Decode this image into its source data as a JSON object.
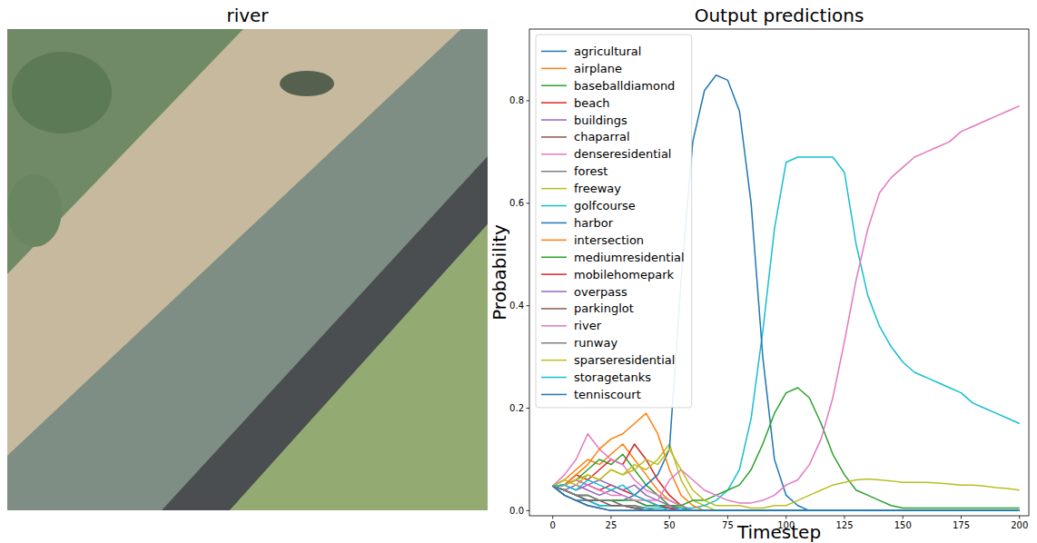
{
  "image_panel": {
    "title": "river"
  },
  "chart_data": {
    "type": "line",
    "title": "Output predictions",
    "x_label": "Timestep",
    "y_label": "Probability",
    "legend": "upper left",
    "grid": false,
    "xlim": [
      -10,
      204
    ],
    "ylim": [
      -0.01,
      0.94
    ],
    "xticks": [
      0,
      25,
      50,
      75,
      100,
      125,
      150,
      175,
      200
    ],
    "yticks": [
      {
        "value": 0,
        "label": "0.0"
      },
      0.2,
      0.4,
      0.6,
      0.8
    ],
    "x": [
      0,
      5,
      10,
      15,
      20,
      25,
      30,
      35,
      40,
      45,
      50,
      55,
      60,
      65,
      70,
      75,
      80,
      85,
      90,
      95,
      100,
      105,
      110,
      115,
      120,
      125,
      130,
      135,
      140,
      145,
      150,
      155,
      160,
      165,
      170,
      175,
      180,
      185,
      190,
      195,
      200
    ],
    "series": [
      {
        "name": "agricultural",
        "color": "#1f77b4",
        "values": [
          0.048,
          0.03,
          0.02,
          0.02,
          0.01,
          0.01,
          0.01,
          0.005,
          0,
          0,
          0,
          0,
          0,
          0,
          0,
          0,
          0,
          0,
          0,
          0,
          0,
          0,
          0,
          0,
          0,
          0,
          0,
          0,
          0,
          0,
          0,
          0,
          0,
          0,
          0,
          0,
          0,
          0,
          0,
          0,
          0
        ]
      },
      {
        "name": "airplane",
        "color": "#ff7f0e",
        "values": [
          0.048,
          0.06,
          0.08,
          0.1,
          0.09,
          0.11,
          0.13,
          0.1,
          0.07,
          0.04,
          0.02,
          0.01,
          0,
          0,
          0,
          0,
          0,
          0,
          0,
          0,
          0,
          0,
          0,
          0,
          0,
          0,
          0,
          0,
          0,
          0,
          0,
          0,
          0,
          0,
          0,
          0,
          0,
          0,
          0,
          0,
          0
        ]
      },
      {
        "name": "baseballdiamond",
        "color": "#2ca02c",
        "values": [
          0.048,
          0.05,
          0.06,
          0.08,
          0.1,
          0.09,
          0.11,
          0.08,
          0.05,
          0.03,
          0.01,
          0.005,
          0,
          0,
          0,
          0,
          0,
          0,
          0,
          0,
          0,
          0,
          0,
          0,
          0,
          0,
          0,
          0,
          0,
          0,
          0,
          0,
          0,
          0,
          0,
          0,
          0,
          0,
          0,
          0,
          0
        ]
      },
      {
        "name": "beach",
        "color": "#d62728",
        "values": [
          0.048,
          0.05,
          0.07,
          0.06,
          0.08,
          0.1,
          0.09,
          0.13,
          0.1,
          0.06,
          0.03,
          0.01,
          0,
          0,
          0,
          0,
          0,
          0,
          0,
          0,
          0,
          0,
          0,
          0,
          0,
          0,
          0,
          0,
          0,
          0,
          0,
          0,
          0,
          0,
          0,
          0,
          0,
          0,
          0,
          0,
          0
        ]
      },
      {
        "name": "buildings",
        "color": "#9467bd",
        "values": [
          0.048,
          0.04,
          0.05,
          0.04,
          0.03,
          0.04,
          0.03,
          0.02,
          0.01,
          0.01,
          0.005,
          0,
          0,
          0,
          0,
          0,
          0,
          0,
          0,
          0,
          0,
          0,
          0,
          0,
          0,
          0,
          0,
          0,
          0,
          0,
          0,
          0,
          0,
          0,
          0,
          0,
          0,
          0,
          0,
          0,
          0
        ]
      },
      {
        "name": "chaparral",
        "color": "#8c564b",
        "values": [
          0.048,
          0.03,
          0.02,
          0.01,
          0.005,
          0,
          0,
          0,
          0,
          0,
          0,
          0,
          0,
          0,
          0,
          0,
          0,
          0,
          0,
          0,
          0,
          0,
          0,
          0,
          0,
          0,
          0,
          0,
          0,
          0,
          0,
          0,
          0,
          0,
          0,
          0,
          0,
          0,
          0,
          0,
          0
        ]
      },
      {
        "name": "denseresidential",
        "color": "#e377c2",
        "values": [
          0.048,
          0.07,
          0.1,
          0.15,
          0.12,
          0.1,
          0.09,
          0.06,
          0.04,
          0.03,
          0.02,
          0.01,
          0,
          0,
          0,
          0,
          0,
          0,
          0,
          0,
          0,
          0,
          0,
          0,
          0,
          0,
          0,
          0,
          0,
          0,
          0,
          0,
          0,
          0,
          0,
          0,
          0,
          0,
          0,
          0,
          0
        ]
      },
      {
        "name": "forest",
        "color": "#7f7f7f",
        "values": [
          0.048,
          0.04,
          0.03,
          0.03,
          0.02,
          0.02,
          0.01,
          0.01,
          0.005,
          0,
          0,
          0,
          0,
          0,
          0,
          0,
          0,
          0,
          0,
          0,
          0,
          0,
          0,
          0,
          0,
          0,
          0,
          0,
          0,
          0,
          0,
          0,
          0,
          0,
          0,
          0,
          0,
          0,
          0,
          0,
          0
        ]
      },
      {
        "name": "freeway",
        "color": "#bcbd22",
        "values": [
          0.048,
          0.06,
          0.05,
          0.07,
          0.06,
          0.08,
          0.07,
          0.09,
          0.08,
          0.1,
          0.13,
          0.06,
          0.02,
          0.01,
          0,
          0,
          0,
          0,
          0,
          0,
          0,
          0,
          0,
          0,
          0,
          0,
          0,
          0,
          0,
          0,
          0,
          0,
          0,
          0,
          0,
          0,
          0,
          0,
          0,
          0,
          0
        ]
      },
      {
        "name": "golfcourse",
        "color": "#17becf",
        "values": [
          0.048,
          0.04,
          0.03,
          0.02,
          0.01,
          0.01,
          0.01,
          0.005,
          0.005,
          0.005,
          0.005,
          0.005,
          0.005,
          0.01,
          0.02,
          0.04,
          0.08,
          0.18,
          0.35,
          0.55,
          0.68,
          0.69,
          0.69,
          0.69,
          0.69,
          0.66,
          0.52,
          0.42,
          0.36,
          0.32,
          0.29,
          0.27,
          0.26,
          0.25,
          0.24,
          0.23,
          0.21,
          0.2,
          0.19,
          0.18,
          0.17
        ]
      },
      {
        "name": "harbor",
        "color": "#1f77b4",
        "values": [
          0.048,
          0.04,
          0.03,
          0.02,
          0.02,
          0.02,
          0.02,
          0.03,
          0.05,
          0.07,
          0.12,
          0.45,
          0.72,
          0.82,
          0.85,
          0.84,
          0.78,
          0.6,
          0.3,
          0.1,
          0.03,
          0.01,
          0,
          0,
          0,
          0,
          0,
          0,
          0,
          0,
          0,
          0,
          0,
          0,
          0,
          0,
          0,
          0,
          0,
          0,
          0
        ]
      },
      {
        "name": "intersection",
        "color": "#ff7f0e",
        "values": [
          0.048,
          0.05,
          0.07,
          0.09,
          0.12,
          0.14,
          0.15,
          0.17,
          0.19,
          0.15,
          0.08,
          0.03,
          0.01,
          0,
          0,
          0,
          0,
          0,
          0,
          0,
          0,
          0,
          0,
          0,
          0,
          0,
          0,
          0,
          0,
          0,
          0,
          0,
          0,
          0,
          0,
          0,
          0,
          0,
          0,
          0,
          0
        ]
      },
      {
        "name": "mediumresidential",
        "color": "#2ca02c",
        "values": [
          0.048,
          0.04,
          0.03,
          0.03,
          0.02,
          0.02,
          0.02,
          0.02,
          0.01,
          0.01,
          0.01,
          0.01,
          0.02,
          0.02,
          0.03,
          0.04,
          0.05,
          0.08,
          0.13,
          0.19,
          0.23,
          0.24,
          0.22,
          0.17,
          0.11,
          0.07,
          0.04,
          0.03,
          0.02,
          0.01,
          0.005,
          0.005,
          0.005,
          0.005,
          0.005,
          0.005,
          0.005,
          0.005,
          0.005,
          0.005,
          0.005
        ]
      },
      {
        "name": "mobilehomepark",
        "color": "#d62728",
        "values": [
          0.048,
          0.05,
          0.06,
          0.05,
          0.04,
          0.05,
          0.04,
          0.03,
          0.02,
          0.01,
          0.005,
          0,
          0,
          0,
          0,
          0,
          0,
          0,
          0,
          0,
          0,
          0,
          0,
          0,
          0,
          0,
          0,
          0,
          0,
          0,
          0,
          0,
          0,
          0,
          0,
          0,
          0,
          0,
          0,
          0,
          0
        ]
      },
      {
        "name": "overpass",
        "color": "#9467bd",
        "values": [
          0.048,
          0.05,
          0.04,
          0.05,
          0.06,
          0.05,
          0.04,
          0.05,
          0.03,
          0.02,
          0.01,
          0,
          0,
          0,
          0,
          0,
          0,
          0,
          0,
          0,
          0,
          0,
          0,
          0,
          0,
          0,
          0,
          0,
          0,
          0,
          0,
          0,
          0,
          0,
          0,
          0,
          0,
          0,
          0,
          0,
          0
        ]
      },
      {
        "name": "parkinglot",
        "color": "#8c564b",
        "values": [
          0.048,
          0.04,
          0.03,
          0.02,
          0.02,
          0.01,
          0.01,
          0.005,
          0,
          0,
          0,
          0,
          0,
          0,
          0,
          0,
          0,
          0,
          0,
          0,
          0,
          0,
          0,
          0,
          0,
          0,
          0,
          0,
          0,
          0,
          0,
          0,
          0,
          0,
          0,
          0,
          0,
          0,
          0,
          0,
          0
        ]
      },
      {
        "name": "river",
        "color": "#e377c2",
        "values": [
          0.048,
          0.05,
          0.06,
          0.05,
          0.04,
          0.03,
          0.03,
          0.02,
          0.02,
          0.02,
          0.06,
          0.08,
          0.06,
          0.04,
          0.03,
          0.02,
          0.015,
          0.015,
          0.02,
          0.03,
          0.05,
          0.06,
          0.09,
          0.14,
          0.22,
          0.33,
          0.45,
          0.55,
          0.62,
          0.65,
          0.67,
          0.69,
          0.7,
          0.71,
          0.72,
          0.74,
          0.75,
          0.76,
          0.77,
          0.78,
          0.79
        ]
      },
      {
        "name": "runway",
        "color": "#7f7f7f",
        "values": [
          0.048,
          0.04,
          0.03,
          0.03,
          0.02,
          0.02,
          0.01,
          0.01,
          0,
          0,
          0,
          0,
          0,
          0,
          0,
          0,
          0,
          0,
          0,
          0,
          0,
          0,
          0,
          0,
          0,
          0,
          0,
          0,
          0,
          0,
          0,
          0,
          0,
          0,
          0,
          0,
          0,
          0,
          0,
          0,
          0
        ]
      },
      {
        "name": "sparseresidential",
        "color": "#bcbd22",
        "values": [
          0.048,
          0.05,
          0.06,
          0.07,
          0.06,
          0.08,
          0.07,
          0.08,
          0.1,
          0.09,
          0.12,
          0.08,
          0.04,
          0.02,
          0.01,
          0.01,
          0.01,
          0.005,
          0.005,
          0.01,
          0.01,
          0.02,
          0.03,
          0.04,
          0.05,
          0.055,
          0.06,
          0.062,
          0.06,
          0.058,
          0.055,
          0.055,
          0.055,
          0.054,
          0.052,
          0.05,
          0.05,
          0.048,
          0.045,
          0.043,
          0.04
        ]
      },
      {
        "name": "storagetanks",
        "color": "#17becf",
        "values": [
          0.048,
          0.05,
          0.04,
          0.06,
          0.05,
          0.04,
          0.05,
          0.03,
          0.02,
          0.01,
          0,
          0,
          0,
          0,
          0,
          0,
          0,
          0,
          0,
          0,
          0,
          0,
          0,
          0,
          0,
          0,
          0,
          0,
          0,
          0,
          0,
          0,
          0,
          0,
          0,
          0,
          0,
          0,
          0,
          0,
          0
        ]
      },
      {
        "name": "tenniscourt",
        "color": "#1f77b4",
        "values": [
          0.048,
          0.03,
          0.02,
          0.01,
          0.005,
          0,
          0,
          0,
          0,
          0,
          0,
          0,
          0,
          0,
          0,
          0,
          0,
          0,
          0,
          0,
          0,
          0,
          0,
          0,
          0,
          0,
          0,
          0,
          0,
          0,
          0,
          0,
          0,
          0,
          0,
          0,
          0,
          0,
          0,
          0,
          0
        ]
      }
    ]
  }
}
